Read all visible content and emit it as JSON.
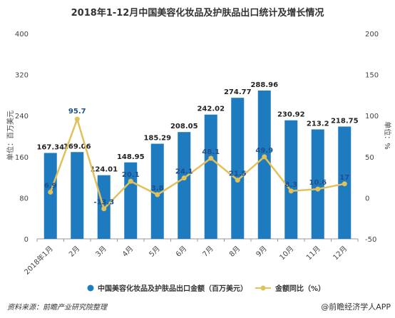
{
  "colors": {
    "bar": "#1f7bc0",
    "line": "#e3c15a",
    "marker": "#e3c15a",
    "axis": "#999999"
  },
  "chart_data": {
    "type": "bar",
    "title": "2018年1-12月中国美容化妆品及护肤品出口统计及增长情况",
    "categories": [
      "2018年1月",
      "2月",
      "3月",
      "4月",
      "5月",
      "6月",
      "7月",
      "8月",
      "9月",
      "10月",
      "11月",
      "12月"
    ],
    "y_left": {
      "label": "单位：百万美元",
      "range": [
        0,
        400
      ],
      "ticks": [
        0,
        80,
        160,
        240,
        320,
        400
      ]
    },
    "y_right": {
      "label": "单位：%",
      "range": [
        -50,
        200
      ],
      "ticks": [
        -50,
        0,
        50,
        100,
        150,
        200
      ]
    },
    "series": [
      {
        "name": "中国美容化妆品及护肤品出口金额（百万美元）",
        "type": "bar",
        "axis": "left",
        "values": [
          167.34,
          169.06,
          124.01,
          148.95,
          185.29,
          208.05,
          242.02,
          274.77,
          288.96,
          230.92,
          213.2,
          218.75
        ],
        "labels": [
          "167.34",
          "169.06",
          "124.01",
          "148.95",
          "185.29",
          "208.05",
          "242.02",
          "274.77",
          "288.96",
          "230.92",
          "213.2",
          "218.75"
        ]
      },
      {
        "name": "金额同比（%）",
        "type": "line",
        "axis": "right",
        "values": [
          6.9,
          95.7,
          -13.3,
          20.1,
          3.8,
          24.1,
          48.1,
          21.5,
          49.9,
          8.3,
          10.6,
          17
        ],
        "labels": [
          "6.9",
          "95.7",
          "-13.3",
          "20.1",
          "3.8",
          "24.1",
          "48.1",
          "21.5",
          "49.9",
          "8.3",
          "10.6",
          "17"
        ]
      }
    ],
    "legend_position": "bottom",
    "grid": false
  },
  "footer": {
    "source": "资料来源：前瞻产业研究院整理",
    "watermark": "@前瞻经济学人APP"
  }
}
